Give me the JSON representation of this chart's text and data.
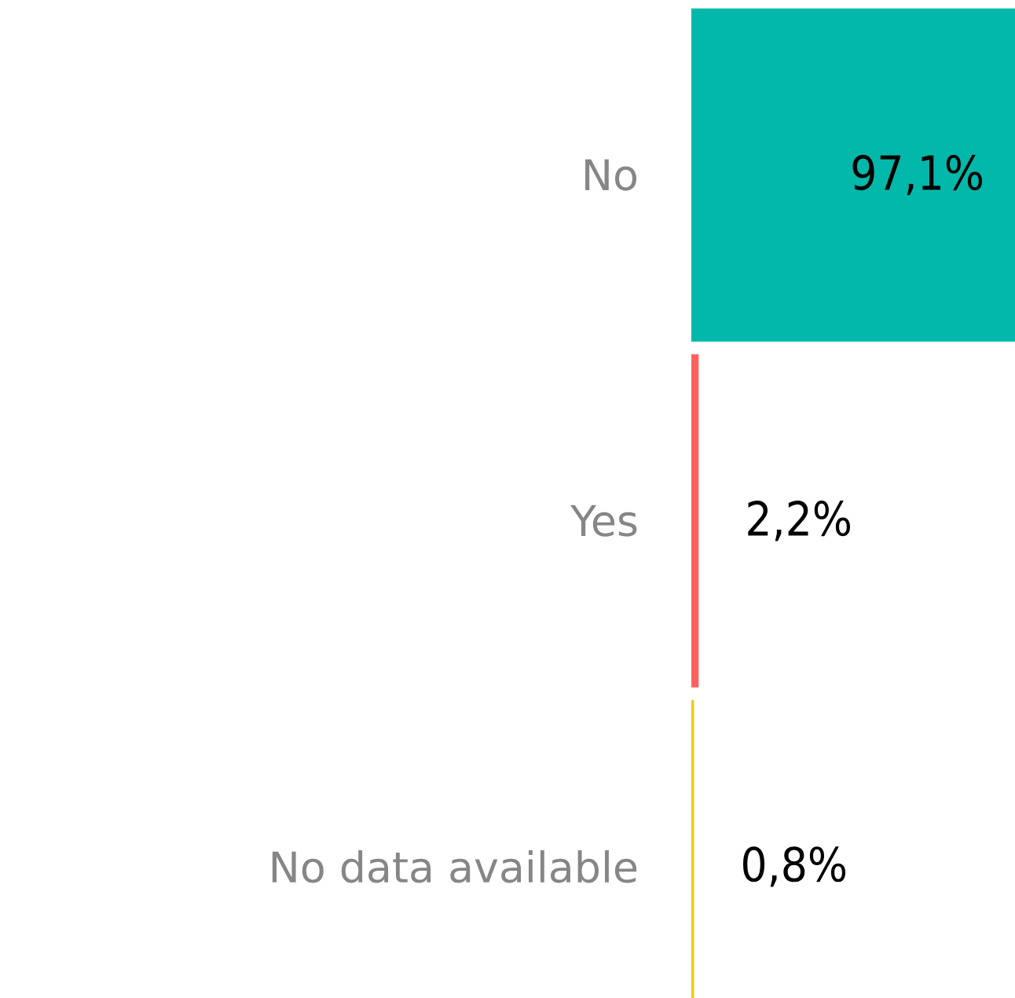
{
  "chart_data": {
    "type": "bar",
    "orientation": "horizontal",
    "categories": [
      "No",
      "Yes",
      "No data available"
    ],
    "values": [
      97.1,
      2.2,
      0.8
    ],
    "colors": [
      "#01b8aa",
      "#fd625e",
      "#f2c80f"
    ],
    "value_labels": [
      "97,1%",
      "2,2%",
      "0,8%"
    ],
    "grid": false
  }
}
